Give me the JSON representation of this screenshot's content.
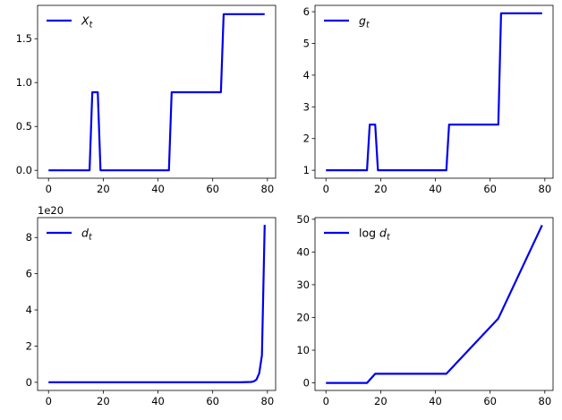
{
  "figure": {
    "colors": {
      "line": "#0000ee",
      "axes": "#000000",
      "background": "#ffffff"
    }
  },
  "chart_data": [
    {
      "type": "line",
      "legend": {
        "text": "X",
        "sub": "t",
        "prefix": "",
        "placement": "upper-left"
      },
      "xlim": [
        -4,
        83
      ],
      "ylim": [
        -0.09,
        1.88
      ],
      "xticks": [
        0,
        20,
        40,
        60,
        80
      ],
      "xtick_labels": [
        "0",
        "20",
        "40",
        "60",
        "80"
      ],
      "yticks": [
        0.0,
        0.5,
        1.0,
        1.5
      ],
      "ytick_labels": [
        "0.0",
        "0.5",
        "1.0",
        "1.5"
      ],
      "offset_text": "",
      "grid": false,
      "series": [
        {
          "x": [
            0,
            15,
            16,
            18,
            19,
            44,
            45,
            63,
            64,
            79
          ],
          "y": [
            0,
            0,
            0.89,
            0.89,
            0,
            0,
            0.89,
            0.89,
            1.78,
            1.78
          ]
        }
      ]
    },
    {
      "type": "line",
      "legend": {
        "text": "g",
        "sub": "t",
        "prefix": "",
        "placement": "upper-left"
      },
      "xlim": [
        -4,
        83
      ],
      "ylim": [
        0.75,
        6.2
      ],
      "xticks": [
        0,
        20,
        40,
        60,
        80
      ],
      "xtick_labels": [
        "0",
        "20",
        "40",
        "60",
        "80"
      ],
      "yticks": [
        1,
        2,
        3,
        4,
        5,
        6
      ],
      "ytick_labels": [
        "1",
        "2",
        "3",
        "4",
        "5",
        "6"
      ],
      "offset_text": "",
      "grid": false,
      "series": [
        {
          "x": [
            0,
            15,
            16,
            18,
            19,
            44,
            45,
            63,
            64,
            79
          ],
          "y": [
            1,
            1,
            2.44,
            2.44,
            1,
            1,
            2.44,
            2.44,
            5.95,
            5.95
          ]
        }
      ]
    },
    {
      "type": "line",
      "legend": {
        "text": "d",
        "sub": "t",
        "prefix": "",
        "placement": "upper-left"
      },
      "xlim": [
        -4,
        83
      ],
      "ylim": [
        -0.45,
        9.1
      ],
      "xticks": [
        0,
        20,
        40,
        60,
        80
      ],
      "xtick_labels": [
        "0",
        "20",
        "40",
        "60",
        "80"
      ],
      "yticks": [
        0,
        2,
        4,
        6,
        8
      ],
      "ytick_labels": [
        "0",
        "2",
        "4",
        "6",
        "8"
      ],
      "offset_text": "1e20",
      "grid": false,
      "series": [
        {
          "x": [
            0,
            70,
            74,
            75,
            76,
            77,
            78,
            79
          ],
          "y": [
            0,
            0,
            0.02,
            0.05,
            0.15,
            0.5,
            1.5,
            8.7
          ]
        }
      ]
    },
    {
      "type": "line",
      "legend": {
        "text": "d",
        "sub": "t",
        "prefix": "log ",
        "placement": "upper-left"
      },
      "xlim": [
        -4,
        83
      ],
      "ylim": [
        -2.3,
        50.5
      ],
      "xticks": [
        0,
        20,
        40,
        60,
        80
      ],
      "xtick_labels": [
        "0",
        "20",
        "40",
        "60",
        "80"
      ],
      "yticks": [
        0,
        10,
        20,
        30,
        40,
        50
      ],
      "ytick_labels": [
        "0",
        "10",
        "20",
        "30",
        "40",
        "50"
      ],
      "offset_text": "",
      "grid": false,
      "series": [
        {
          "x": [
            0,
            15,
            18,
            44,
            63,
            79
          ],
          "y": [
            0,
            0,
            2.8,
            2.8,
            19.7,
            48.2
          ]
        }
      ]
    }
  ]
}
